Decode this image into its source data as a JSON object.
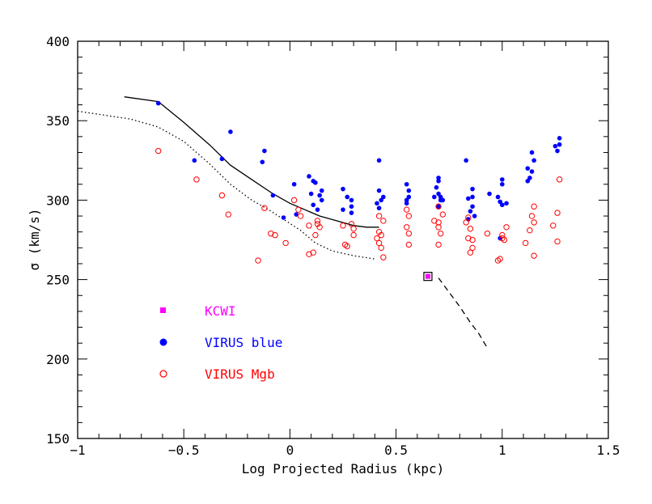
{
  "chart_data": {
    "type": "scatter",
    "title": "",
    "xlabel": "Log Projected Radius (kpc)",
    "ylabel": "σ (km/s)",
    "xlim": [
      -1,
      1.5
    ],
    "ylim": [
      150,
      400
    ],
    "x_ticks": [
      -1,
      -0.5,
      0,
      0.5,
      1,
      1.5
    ],
    "x_tick_labels": [
      "−1",
      "−0.5",
      "0",
      "0.5",
      "1",
      "1.5"
    ],
    "y_ticks": [
      150,
      200,
      250,
      300,
      350,
      400
    ],
    "y_tick_labels": [
      "150",
      "200",
      "250",
      "300",
      "350",
      "400"
    ],
    "legend_position": "lower-left",
    "series": [
      {
        "name": "KCWI",
        "marker": "square",
        "color": "#ff00ff",
        "points": [
          [
            0.65,
            252
          ]
        ]
      },
      {
        "name": "VIRUS blue",
        "marker": "filled-circle",
        "color": "#0000ff",
        "points": [
          [
            -0.62,
            361
          ],
          [
            -0.45,
            325
          ],
          [
            -0.32,
            326
          ],
          [
            -0.28,
            343
          ],
          [
            -0.12,
            331
          ],
          [
            -0.13,
            324
          ],
          [
            -0.08,
            303
          ],
          [
            -0.03,
            289
          ],
          [
            0.02,
            310
          ],
          [
            0.03,
            291
          ],
          [
            0.09,
            315
          ],
          [
            0.11,
            312
          ],
          [
            0.1,
            304
          ],
          [
            0.12,
            311
          ],
          [
            0.13,
            294
          ],
          [
            0.14,
            303
          ],
          [
            0.15,
            300
          ],
          [
            0.15,
            306
          ],
          [
            0.11,
            297
          ],
          [
            0.25,
            307
          ],
          [
            0.27,
            302
          ],
          [
            0.25,
            294
          ],
          [
            0.29,
            300
          ],
          [
            0.29,
            296
          ],
          [
            0.29,
            292
          ],
          [
            0.41,
            298
          ],
          [
            0.42,
            325
          ],
          [
            0.42,
            306
          ],
          [
            0.43,
            300
          ],
          [
            0.42,
            295
          ],
          [
            0.44,
            302
          ],
          [
            0.55,
            310
          ],
          [
            0.56,
            306
          ],
          [
            0.56,
            302
          ],
          [
            0.55,
            298
          ],
          [
            0.55,
            300
          ],
          [
            0.68,
            302
          ],
          [
            0.69,
            308
          ],
          [
            0.7,
            312
          ],
          [
            0.7,
            314
          ],
          [
            0.7,
            304
          ],
          [
            0.71,
            302
          ],
          [
            0.71,
            300
          ],
          [
            0.7,
            296
          ],
          [
            0.72,
            300
          ],
          [
            0.83,
            325
          ],
          [
            0.84,
            301
          ],
          [
            0.86,
            307
          ],
          [
            0.86,
            302
          ],
          [
            0.86,
            296
          ],
          [
            0.85,
            293
          ],
          [
            0.87,
            290
          ],
          [
            0.84,
            288
          ],
          [
            0.94,
            304
          ],
          [
            0.98,
            302
          ],
          [
            0.99,
            299
          ],
          [
            1.0,
            313
          ],
          [
            1.0,
            310
          ],
          [
            1.02,
            298
          ],
          [
            1.0,
            297
          ],
          [
            0.99,
            276
          ],
          [
            1.12,
            320
          ],
          [
            1.13,
            314
          ],
          [
            1.14,
            330
          ],
          [
            1.15,
            325
          ],
          [
            1.14,
            318
          ],
          [
            1.12,
            312
          ],
          [
            1.25,
            334
          ],
          [
            1.26,
            331
          ],
          [
            1.27,
            339
          ],
          [
            1.27,
            335
          ]
        ]
      },
      {
        "name": "VIRUS Mgb",
        "marker": "open-circle",
        "color": "#ff0000",
        "points": [
          [
            -0.62,
            331
          ],
          [
            -0.44,
            313
          ],
          [
            -0.32,
            303
          ],
          [
            -0.29,
            291
          ],
          [
            -0.15,
            262
          ],
          [
            -0.12,
            295
          ],
          [
            -0.07,
            278
          ],
          [
            -0.09,
            279
          ],
          [
            -0.02,
            273
          ],
          [
            0.02,
            300
          ],
          [
            0.04,
            294
          ],
          [
            0.05,
            290
          ],
          [
            0.09,
            284
          ],
          [
            0.09,
            266
          ],
          [
            0.11,
            267
          ],
          [
            0.12,
            278
          ],
          [
            0.13,
            287
          ],
          [
            0.13,
            285
          ],
          [
            0.14,
            283
          ],
          [
            0.25,
            284
          ],
          [
            0.26,
            272
          ],
          [
            0.27,
            271
          ],
          [
            0.29,
            285
          ],
          [
            0.3,
            282
          ],
          [
            0.3,
            278
          ],
          [
            0.41,
            276
          ],
          [
            0.42,
            280
          ],
          [
            0.43,
            278
          ],
          [
            0.42,
            273
          ],
          [
            0.43,
            270
          ],
          [
            0.44,
            264
          ],
          [
            0.44,
            287
          ],
          [
            0.42,
            290
          ],
          [
            0.55,
            294
          ],
          [
            0.56,
            290
          ],
          [
            0.55,
            283
          ],
          [
            0.56,
            279
          ],
          [
            0.56,
            272
          ],
          [
            0.68,
            287
          ],
          [
            0.7,
            286
          ],
          [
            0.7,
            283
          ],
          [
            0.71,
            279
          ],
          [
            0.7,
            272
          ],
          [
            0.72,
            291
          ],
          [
            0.7,
            296
          ],
          [
            0.83,
            286
          ],
          [
            0.85,
            282
          ],
          [
            0.84,
            276
          ],
          [
            0.86,
            275
          ],
          [
            0.86,
            270
          ],
          [
            0.85,
            267
          ],
          [
            0.84,
            289
          ],
          [
            0.93,
            279
          ],
          [
            0.98,
            262
          ],
          [
            0.99,
            263
          ],
          [
            1.0,
            278
          ],
          [
            1.0,
            276
          ],
          [
            1.01,
            275
          ],
          [
            1.02,
            283
          ],
          [
            1.11,
            273
          ],
          [
            1.13,
            281
          ],
          [
            1.14,
            290
          ],
          [
            1.15,
            296
          ],
          [
            1.15,
            286
          ],
          [
            1.15,
            265
          ],
          [
            1.24,
            284
          ],
          [
            1.26,
            292
          ],
          [
            1.26,
            274
          ],
          [
            1.27,
            313
          ]
        ]
      }
    ],
    "lines": [
      {
        "style": "solid",
        "color": "#000000",
        "points": [
          [
            -0.78,
            365
          ],
          [
            -0.62,
            362
          ],
          [
            -0.5,
            349
          ],
          [
            -0.38,
            335
          ],
          [
            -0.28,
            322
          ],
          [
            -0.18,
            313
          ],
          [
            -0.08,
            304
          ],
          [
            0.0,
            298
          ],
          [
            0.07,
            294
          ],
          [
            0.14,
            290
          ],
          [
            0.22,
            287
          ],
          [
            0.3,
            284
          ],
          [
            0.36,
            283
          ],
          [
            0.42,
            283
          ]
        ]
      },
      {
        "style": "dotted",
        "color": "#000000",
        "points": [
          [
            -1.0,
            356
          ],
          [
            -0.75,
            351
          ],
          [
            -0.62,
            346
          ],
          [
            -0.5,
            337
          ],
          [
            -0.38,
            323
          ],
          [
            -0.28,
            310
          ],
          [
            -0.18,
            300
          ],
          [
            -0.1,
            294
          ],
          [
            -0.02,
            287
          ],
          [
            0.05,
            281
          ],
          [
            0.12,
            273
          ],
          [
            0.2,
            268
          ],
          [
            0.3,
            265
          ],
          [
            0.4,
            263
          ]
        ]
      },
      {
        "style": "dashed",
        "color": "#000000",
        "points": [
          [
            0.7,
            251
          ],
          [
            0.75,
            242
          ],
          [
            0.8,
            233
          ],
          [
            0.85,
            223
          ],
          [
            0.89,
            216
          ],
          [
            0.93,
            207
          ]
        ]
      }
    ]
  }
}
